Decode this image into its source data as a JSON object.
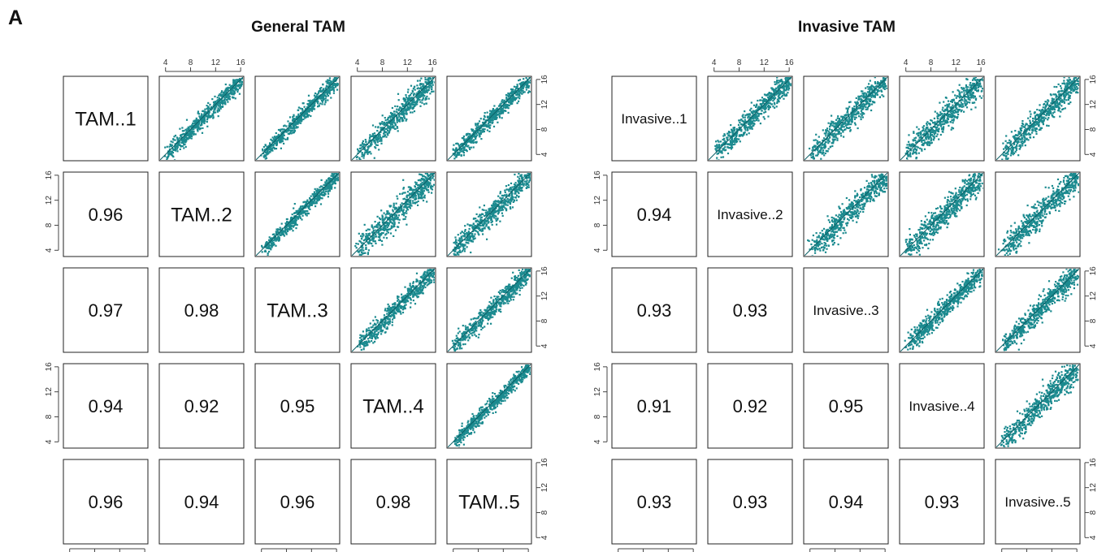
{
  "panel_label": "A",
  "colors": {
    "points": "#1b8a8f",
    "points_dark": "#0e6168",
    "frame": "#222222"
  },
  "chart_data": [
    {
      "type": "scatter",
      "chart_kind": "scatterplot-matrix",
      "title": "General TAM",
      "variables": [
        "TAM..1",
        "TAM..2",
        "TAM..3",
        "TAM..4",
        "TAM..5"
      ],
      "axis_range": [
        3,
        16.5
      ],
      "ticks": [
        "4",
        "8",
        "12",
        "16"
      ],
      "correlations": [
        {
          "row": 2,
          "col": 1,
          "value": "0.96"
        },
        {
          "row": 3,
          "col": 1,
          "value": "0.97"
        },
        {
          "row": 3,
          "col": 2,
          "value": "0.98"
        },
        {
          "row": 4,
          "col": 1,
          "value": "0.94"
        },
        {
          "row": 4,
          "col": 2,
          "value": "0.92"
        },
        {
          "row": 4,
          "col": 3,
          "value": "0.95"
        },
        {
          "row": 5,
          "col": 1,
          "value": "0.96"
        },
        {
          "row": 5,
          "col": 2,
          "value": "0.94"
        },
        {
          "row": 5,
          "col": 3,
          "value": "0.96"
        },
        {
          "row": 5,
          "col": 4,
          "value": "0.98"
        }
      ]
    },
    {
      "type": "scatter",
      "chart_kind": "scatterplot-matrix",
      "title": "Invasive TAM",
      "variables": [
        "Invasive..1",
        "Invasive..2",
        "Invasive..3",
        "Invasive..4",
        "Invasive..5"
      ],
      "axis_range": [
        3,
        16.5
      ],
      "ticks": [
        "4",
        "8",
        "12",
        "16"
      ],
      "correlations": [
        {
          "row": 2,
          "col": 1,
          "value": "0.94"
        },
        {
          "row": 3,
          "col": 1,
          "value": "0.93"
        },
        {
          "row": 3,
          "col": 2,
          "value": "0.93"
        },
        {
          "row": 4,
          "col": 1,
          "value": "0.91"
        },
        {
          "row": 4,
          "col": 2,
          "value": "0.92"
        },
        {
          "row": 4,
          "col": 3,
          "value": "0.95"
        },
        {
          "row": 5,
          "col": 1,
          "value": "0.93"
        },
        {
          "row": 5,
          "col": 2,
          "value": "0.93"
        },
        {
          "row": 5,
          "col": 3,
          "value": "0.94"
        },
        {
          "row": 5,
          "col": 4,
          "value": "0.93"
        }
      ]
    }
  ]
}
